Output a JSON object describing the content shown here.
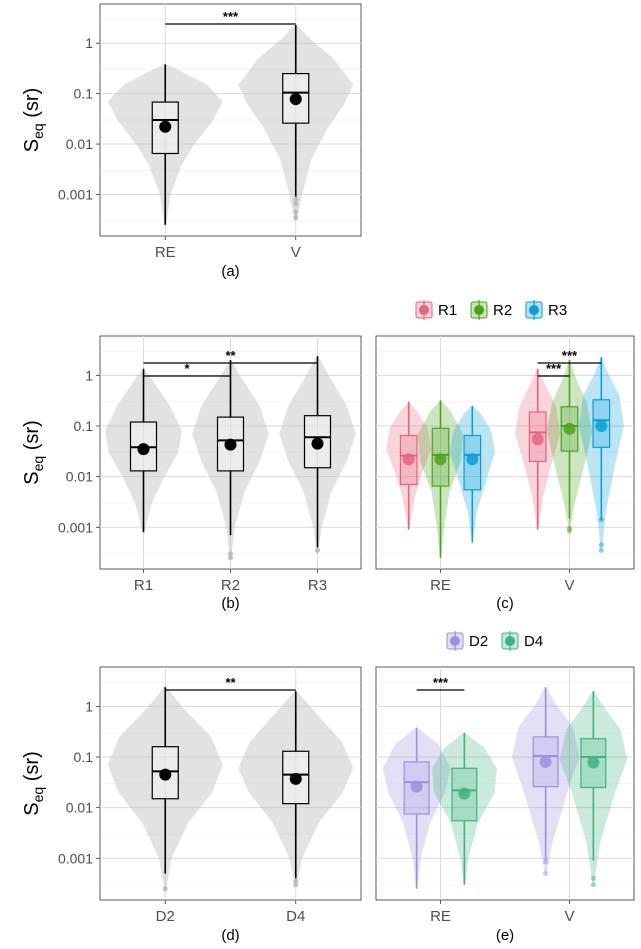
{
  "y_axis": {
    "label_main": "S",
    "label_sub": "eq",
    "label_unit": "(sr)",
    "scale": "log10",
    "ticks": [
      0.001,
      0.01,
      0.1,
      1
    ],
    "tick_labels": [
      "0.001",
      "0.01",
      "0.1",
      "1"
    ]
  },
  "chart_data": [
    {
      "panel": "(a)",
      "type": "violin+box",
      "categories": [
        "RE",
        "V"
      ],
      "ylim": [
        0.00015,
        6
      ],
      "groups": [
        {
          "x": "RE",
          "min": 0.00025,
          "q1": 0.0065,
          "median": 0.03,
          "q3": 0.068,
          "max": 0.38,
          "mean": 0.022,
          "outliers": [],
          "density": [
            [
              0.00025,
              0.01
            ],
            [
              0.001,
              0.05
            ],
            [
              0.004,
              0.16
            ],
            [
              0.01,
              0.28
            ],
            [
              0.03,
              0.46
            ],
            [
              0.07,
              0.55
            ],
            [
              0.15,
              0.4
            ],
            [
              0.3,
              0.12
            ],
            [
              0.38,
              0.01
            ]
          ]
        },
        {
          "x": "V",
          "min": 0.0009,
          "q1": 0.026,
          "median": 0.105,
          "q3": 0.25,
          "max": 2.3,
          "mean": 0.078,
          "outliers": [
            0.0008,
            0.00065,
            0.00045,
            0.00035
          ],
          "density": [
            [
              0.0003,
              0.01
            ],
            [
              0.001,
              0.06
            ],
            [
              0.005,
              0.15
            ],
            [
              0.02,
              0.3
            ],
            [
              0.06,
              0.46
            ],
            [
              0.15,
              0.55
            ],
            [
              0.5,
              0.36
            ],
            [
              1.2,
              0.14
            ],
            [
              2.3,
              0.01
            ]
          ]
        }
      ],
      "fill": "#bfbfbf",
      "significance": [
        {
          "from": "RE",
          "to": "V",
          "label": "***"
        }
      ]
    },
    {
      "panel": "(b)",
      "type": "violin+box",
      "categories": [
        "R1",
        "R2",
        "R3"
      ],
      "ylim": [
        0.00015,
        6
      ],
      "groups": [
        {
          "x": "R1",
          "min": 0.0008,
          "q1": 0.013,
          "median": 0.038,
          "q3": 0.12,
          "max": 1.35,
          "mean": 0.035,
          "outliers": [],
          "density": [
            [
              0.0008,
              0.01
            ],
            [
              0.003,
              0.12
            ],
            [
              0.01,
              0.3
            ],
            [
              0.03,
              0.5
            ],
            [
              0.08,
              0.55
            ],
            [
              0.25,
              0.38
            ],
            [
              0.7,
              0.16
            ],
            [
              1.35,
              0.01
            ]
          ]
        },
        {
          "x": "R2",
          "min": 0.0007,
          "q1": 0.013,
          "median": 0.052,
          "q3": 0.15,
          "max": 2.0,
          "mean": 0.043,
          "outliers": [
            0.0003,
            0.00025
          ],
          "density": [
            [
              0.00025,
              0.01
            ],
            [
              0.001,
              0.06
            ],
            [
              0.005,
              0.2
            ],
            [
              0.02,
              0.42
            ],
            [
              0.07,
              0.55
            ],
            [
              0.25,
              0.42
            ],
            [
              0.8,
              0.18
            ],
            [
              2.0,
              0.01
            ]
          ]
        },
        {
          "x": "R3",
          "min": 0.0004,
          "q1": 0.015,
          "median": 0.06,
          "q3": 0.16,
          "max": 2.4,
          "mean": 0.045,
          "outliers": [
            0.00035
          ],
          "density": [
            [
              0.00035,
              0.01
            ],
            [
              0.001,
              0.06
            ],
            [
              0.005,
              0.2
            ],
            [
              0.02,
              0.42
            ],
            [
              0.07,
              0.55
            ],
            [
              0.25,
              0.42
            ],
            [
              0.9,
              0.18
            ],
            [
              2.4,
              0.01
            ]
          ]
        }
      ],
      "fill": "#bfbfbf",
      "significance": [
        {
          "from": "R1",
          "to": "R2",
          "label": "*"
        },
        {
          "from": "R1",
          "to": "R3",
          "label": "**"
        }
      ]
    },
    {
      "panel": "(c)",
      "type": "violin+box",
      "categories": [
        "RE",
        "V"
      ],
      "ylim": [
        0.00015,
        6
      ],
      "legend": {
        "position": "top",
        "entries": [
          "R1",
          "R2",
          "R3"
        ]
      },
      "series": [
        {
          "name": "R1",
          "color": "#e5637f",
          "groups": [
            {
              "x": "RE",
              "min": 0.0009,
              "q1": 0.007,
              "median": 0.026,
              "q3": 0.065,
              "max": 0.3,
              "mean": 0.022,
              "outliers": [],
              "density": [
                [
                  0.0009,
                  0.01
                ],
                [
                  0.004,
                  0.14
                ],
                [
                  0.012,
                  0.3
                ],
                [
                  0.035,
                  0.5
                ],
                [
                  0.09,
                  0.42
                ],
                [
                  0.2,
                  0.18
                ],
                [
                  0.3,
                  0.01
                ]
              ]
            },
            {
              "x": "V",
              "min": 0.0009,
              "q1": 0.02,
              "median": 0.075,
              "q3": 0.19,
              "max": 1.35,
              "mean": 0.055,
              "outliers": [],
              "density": [
                [
                  0.0009,
                  0.01
                ],
                [
                  0.004,
                  0.12
                ],
                [
                  0.02,
                  0.32
                ],
                [
                  0.07,
                  0.5
                ],
                [
                  0.25,
                  0.4
                ],
                [
                  0.7,
                  0.15
                ],
                [
                  1.35,
                  0.01
                ]
              ]
            }
          ]
        },
        {
          "name": "R2",
          "color": "#4ca11b",
          "groups": [
            {
              "x": "RE",
              "min": 0.00025,
              "q1": 0.0065,
              "median": 0.027,
              "q3": 0.09,
              "max": 0.32,
              "mean": 0.022,
              "outliers": [],
              "density": [
                [
                  0.00025,
                  0.01
                ],
                [
                  0.001,
                  0.08
                ],
                [
                  0.005,
                  0.2
                ],
                [
                  0.02,
                  0.45
                ],
                [
                  0.07,
                  0.5
                ],
                [
                  0.2,
                  0.22
                ],
                [
                  0.32,
                  0.01
                ]
              ]
            },
            {
              "x": "V",
              "min": 0.0015,
              "q1": 0.032,
              "median": 0.1,
              "q3": 0.24,
              "max": 2.0,
              "mean": 0.088,
              "outliers": [
                0.00095,
                0.00085
              ],
              "density": [
                [
                  0.00085,
                  0.01
                ],
                [
                  0.003,
                  0.12
                ],
                [
                  0.02,
                  0.35
                ],
                [
                  0.08,
                  0.5
                ],
                [
                  0.3,
                  0.38
                ],
                [
                  0.9,
                  0.14
                ],
                [
                  2.0,
                  0.01
                ]
              ]
            }
          ]
        },
        {
          "name": "R3",
          "color": "#0b9ed6",
          "groups": [
            {
              "x": "RE",
              "min": 0.0005,
              "q1": 0.0055,
              "median": 0.027,
              "q3": 0.065,
              "max": 0.25,
              "mean": 0.022,
              "outliers": [],
              "density": [
                [
                  0.0005,
                  0.01
                ],
                [
                  0.002,
                  0.1
                ],
                [
                  0.008,
                  0.3
                ],
                [
                  0.03,
                  0.5
                ],
                [
                  0.08,
                  0.42
                ],
                [
                  0.18,
                  0.18
                ],
                [
                  0.25,
                  0.01
                ]
              ]
            },
            {
              "x": "V",
              "min": 0.0014,
              "q1": 0.038,
              "median": 0.13,
              "q3": 0.33,
              "max": 2.3,
              "mean": 0.1,
              "outliers": [
                0.0014,
                0.00045,
                0.00035
              ],
              "density": [
                [
                  0.00035,
                  0.01
                ],
                [
                  0.002,
                  0.1
                ],
                [
                  0.02,
                  0.32
                ],
                [
                  0.1,
                  0.5
                ],
                [
                  0.4,
                  0.4
                ],
                [
                  1.1,
                  0.15
                ],
                [
                  2.3,
                  0.01
                ]
              ]
            }
          ]
        }
      ],
      "significance": [
        {
          "group": "V",
          "from": "R1",
          "to": "R2",
          "label": "***"
        },
        {
          "group": "V",
          "from": "R1",
          "to": "R3",
          "label": "***"
        }
      ]
    },
    {
      "panel": "(d)",
      "type": "violin+box",
      "categories": [
        "D2",
        "D4"
      ],
      "ylim": [
        0.00015,
        6
      ],
      "groups": [
        {
          "x": "D2",
          "min": 0.0005,
          "q1": 0.015,
          "median": 0.052,
          "q3": 0.16,
          "max": 2.4,
          "mean": 0.045,
          "outliers": [
            0.00025
          ],
          "density": [
            [
              0.00025,
              0.01
            ],
            [
              0.001,
              0.06
            ],
            [
              0.005,
              0.22
            ],
            [
              0.02,
              0.45
            ],
            [
              0.07,
              0.55
            ],
            [
              0.25,
              0.44
            ],
            [
              0.9,
              0.18
            ],
            [
              2.4,
              0.01
            ]
          ]
        },
        {
          "x": "D4",
          "min": 0.0004,
          "q1": 0.012,
          "median": 0.045,
          "q3": 0.13,
          "max": 2.0,
          "mean": 0.037,
          "outliers": [
            0.00035,
            0.0003
          ],
          "density": [
            [
              0.0003,
              0.01
            ],
            [
              0.001,
              0.06
            ],
            [
              0.005,
              0.22
            ],
            [
              0.02,
              0.45
            ],
            [
              0.06,
              0.55
            ],
            [
              0.2,
              0.44
            ],
            [
              0.8,
              0.18
            ],
            [
              2.0,
              0.01
            ]
          ]
        }
      ],
      "fill": "#bfbfbf",
      "significance": [
        {
          "from": "D2",
          "to": "D4",
          "label": "**"
        }
      ]
    },
    {
      "panel": "(e)",
      "type": "violin+box",
      "categories": [
        "RE",
        "V"
      ],
      "ylim": [
        0.00015,
        6
      ],
      "legend": {
        "position": "top",
        "entries": [
          "D2",
          "D4"
        ]
      },
      "series": [
        {
          "name": "D2",
          "color": "#9b8fe0",
          "groups": [
            {
              "x": "RE",
              "min": 0.00025,
              "q1": 0.0075,
              "median": 0.032,
              "q3": 0.08,
              "max": 0.38,
              "mean": 0.026,
              "outliers": [],
              "density": [
                [
                  0.00025,
                  0.01
                ],
                [
                  0.001,
                  0.06
                ],
                [
                  0.005,
                  0.2
                ],
                [
                  0.02,
                  0.42
                ],
                [
                  0.06,
                  0.5
                ],
                [
                  0.18,
                  0.32
                ],
                [
                  0.38,
                  0.01
                ]
              ]
            },
            {
              "x": "V",
              "min": 0.0009,
              "q1": 0.026,
              "median": 0.105,
              "q3": 0.25,
              "max": 2.4,
              "mean": 0.08,
              "outliers": [
                0.00085,
                0.0005
              ],
              "density": [
                [
                  0.0005,
                  0.01
                ],
                [
                  0.002,
                  0.1
                ],
                [
                  0.02,
                  0.32
                ],
                [
                  0.1,
                  0.5
                ],
                [
                  0.4,
                  0.4
                ],
                [
                  1.1,
                  0.15
                ],
                [
                  2.4,
                  0.01
                ]
              ]
            }
          ]
        },
        {
          "name": "D4",
          "color": "#3fb27f",
          "groups": [
            {
              "x": "RE",
              "min": 0.0003,
              "q1": 0.0055,
              "median": 0.022,
              "q3": 0.06,
              "max": 0.3,
              "mean": 0.019,
              "outliers": [],
              "density": [
                [
                  0.0003,
                  0.01
                ],
                [
                  0.001,
                  0.06
                ],
                [
                  0.005,
                  0.2
                ],
                [
                  0.02,
                  0.45
                ],
                [
                  0.06,
                  0.48
                ],
                [
                  0.15,
                  0.3
                ],
                [
                  0.3,
                  0.01
                ]
              ]
            },
            {
              "x": "V",
              "min": 0.0009,
              "q1": 0.025,
              "median": 0.1,
              "q3": 0.23,
              "max": 2.0,
              "mean": 0.078,
              "outliers": [
                0.0004,
                0.0003
              ],
              "density": [
                [
                  0.0003,
                  0.01
                ],
                [
                  0.002,
                  0.1
                ],
                [
                  0.02,
                  0.32
                ],
                [
                  0.09,
                  0.5
                ],
                [
                  0.35,
                  0.4
                ],
                [
                  1.0,
                  0.15
                ],
                [
                  2.0,
                  0.01
                ]
              ]
            }
          ]
        }
      ],
      "significance": [
        {
          "group": "RE",
          "from": "D2",
          "to": "D4",
          "label": "***"
        }
      ]
    }
  ]
}
